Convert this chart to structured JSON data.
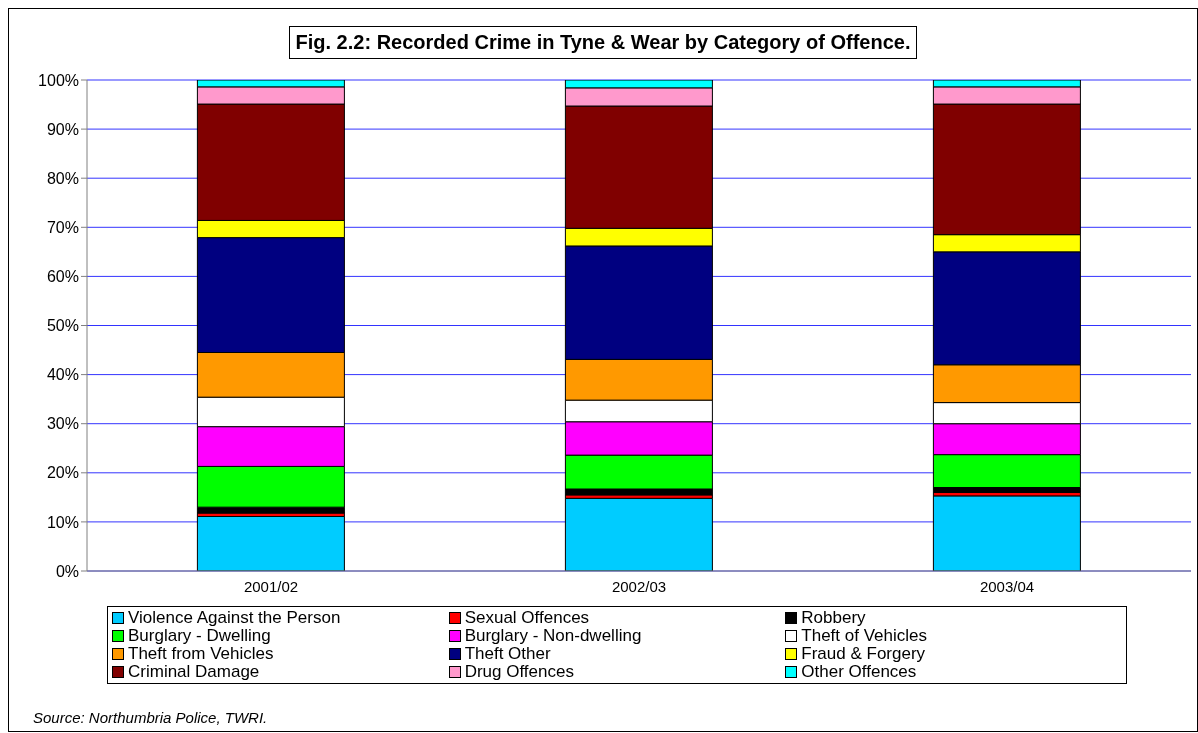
{
  "chart_data": {
    "type": "bar",
    "title": "Fig. 2.2: Recorded Crime in Tyne & Wear by Category of Offence.",
    "categories": [
      "2001/02",
      "2002/03",
      "2003/04"
    ],
    "stacked": true,
    "series": [
      {
        "name": "Violence Against the Person",
        "color": "#00ccff",
        "values": [
          11.1,
          14.8,
          15.3
        ]
      },
      {
        "name": "Sexual Offences",
        "color": "#ff0000",
        "values": [
          0.7,
          0.7,
          0.7
        ]
      },
      {
        "name": "Robbery",
        "color": "#000000",
        "values": [
          1.2,
          1.2,
          1.0
        ]
      },
      {
        "name": "Burglary - Dwelling",
        "color": "#00ff00",
        "values": [
          8.3,
          6.9,
          6.7
        ]
      },
      {
        "name": "Burglary - Non-dwelling",
        "color": "#ff00ff",
        "values": [
          8.1,
          6.8,
          6.3
        ]
      },
      {
        "name": "Theft of Vehicles",
        "color": "#ffffff",
        "values": [
          6.0,
          4.4,
          4.3
        ]
      },
      {
        "name": "Theft from Vehicles",
        "color": "#ff9900",
        "values": [
          9.1,
          8.3,
          7.7
        ]
      },
      {
        "name": "Theft Other",
        "color": "#000080",
        "values": [
          23.4,
          23.1,
          23.0
        ]
      },
      {
        "name": "Fraud & Forgery",
        "color": "#ffff00",
        "values": [
          3.5,
          3.6,
          3.5
        ]
      },
      {
        "name": "Criminal Damage",
        "color": "#800000",
        "values": [
          23.7,
          24.9,
          26.6
        ]
      },
      {
        "name": "Drug Offences",
        "color": "#ff99cc",
        "values": [
          3.5,
          3.7,
          3.5
        ]
      },
      {
        "name": "Other Offences",
        "color": "#00ffff",
        "values": [
          1.4,
          1.6,
          1.4
        ]
      }
    ],
    "ylim": [
      0,
      100
    ],
    "yticks": [
      {
        "value": 0,
        "label": "0%"
      },
      {
        "value": 10,
        "label": "10%"
      },
      {
        "value": 20,
        "label": "20%"
      },
      {
        "value": 30,
        "label": "30%"
      },
      {
        "value": 40,
        "label": "40%"
      },
      {
        "value": 50,
        "label": "50%"
      },
      {
        "value": 60,
        "label": "60%"
      },
      {
        "value": 70,
        "label": "70%"
      },
      {
        "value": 80,
        "label": "80%"
      },
      {
        "value": 90,
        "label": "90%"
      },
      {
        "value": 100,
        "label": "100%"
      }
    ],
    "grid": "y",
    "legend": "bottom",
    "annotations": [
      "Source: Northumbria Police, TWRI."
    ]
  }
}
